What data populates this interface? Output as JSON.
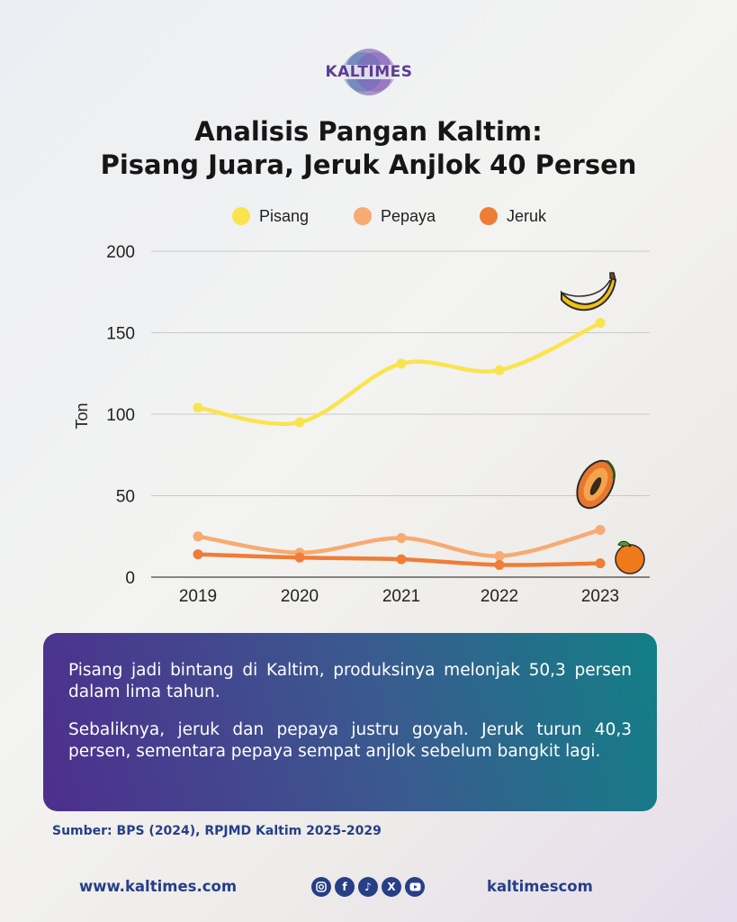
{
  "brand": {
    "logo_text": "KALTIMES"
  },
  "title": {
    "line1": "Analisis Pangan Kaltim:",
    "line2": "Pisang Juara, Jeruk Anjlok 40 Persen"
  },
  "colors": {
    "pisang": "#fae44d",
    "pepaya": "#f7aa72",
    "jeruk": "#ef7d37",
    "text_blue": "#263f86"
  },
  "chart_data": {
    "type": "line",
    "categories": [
      "2019",
      "2020",
      "2021",
      "2022",
      "2023"
    ],
    "series": [
      {
        "name": "Pisang",
        "values": [
          104,
          95,
          131,
          127,
          156
        ],
        "color": "#fae44d",
        "icon": "banana-icon"
      },
      {
        "name": "Pepaya",
        "values": [
          25,
          15,
          24,
          13,
          29
        ],
        "color": "#f7aa72",
        "icon": "papaya-icon"
      },
      {
        "name": "Jeruk",
        "values": [
          14,
          12,
          11,
          7.5,
          8.5
        ],
        "color": "#ef7d37",
        "icon": "orange-icon"
      }
    ],
    "ylabel": "Ton",
    "xlabel": "",
    "ylim": [
      0,
      200
    ],
    "yticks": [
      "0",
      "50",
      "100",
      "150",
      "200"
    ],
    "grid": true,
    "legend": "top"
  },
  "info": {
    "para1": "Pisang jadi bintang di Kaltim, produksinya melonjak 50,3 persen dalam lima tahun.",
    "para2": "Sebaliknya, jeruk dan pepaya justru goyah. Jeruk turun 40,3 persen, sementara pepaya sempat anjlok sebelum bangkit lagi."
  },
  "source": "Sumber: BPS (2024), RPJMD Kaltim 2025-2029",
  "footer": {
    "website": "www.kaltimes.com",
    "handle": "kaltimescom",
    "socials": [
      "instagram-icon",
      "facebook-icon",
      "tiktok-icon",
      "x-icon",
      "youtube-icon"
    ]
  }
}
